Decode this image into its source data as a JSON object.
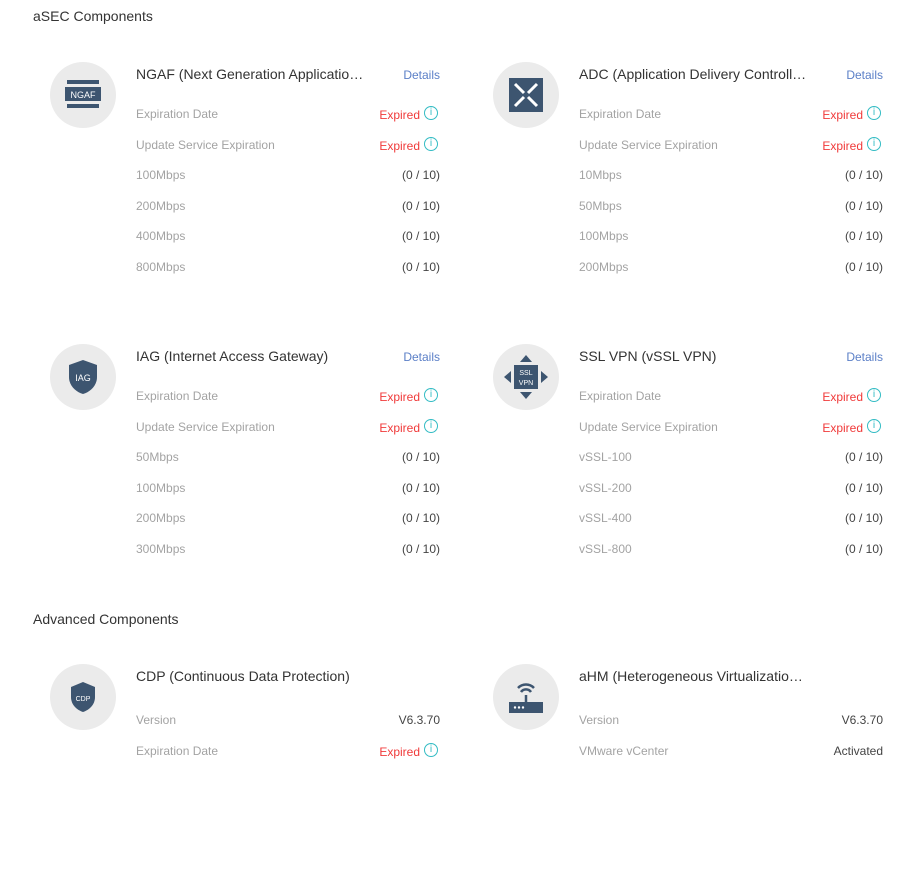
{
  "sections": [
    {
      "title": "aSEC Components"
    },
    {
      "title": "Advanced Components"
    }
  ],
  "colors": {
    "expired": "#f03a3a",
    "link": "#5b7fc7",
    "info": "#33bcc4",
    "icon": "#3d5570"
  },
  "cards": [
    {
      "icon": "ngaf-icon",
      "icon_text": "NGAF",
      "title": "NGAF (Next Generation Applicatio…",
      "details": "Details",
      "rows": [
        {
          "label": "Expiration Date",
          "value": "Expired",
          "status": "expired"
        },
        {
          "label": "Update Service Expiration",
          "value": "Expired",
          "status": "expired"
        },
        {
          "label": "100Mbps",
          "value": "(0 / 10)"
        },
        {
          "label": "200Mbps",
          "value": "(0 / 10)"
        },
        {
          "label": "400Mbps",
          "value": "(0 / 10)"
        },
        {
          "label": "800Mbps",
          "value": "(0 / 10)"
        }
      ]
    },
    {
      "icon": "adc-icon",
      "title": "ADC (Application Delivery Controll…",
      "details": "Details",
      "rows": [
        {
          "label": "Expiration Date",
          "value": "Expired",
          "status": "expired"
        },
        {
          "label": "Update Service Expiration",
          "value": "Expired",
          "status": "expired"
        },
        {
          "label": "10Mbps",
          "value": "(0 / 10)"
        },
        {
          "label": "50Mbps",
          "value": "(0 / 10)"
        },
        {
          "label": "100Mbps",
          "value": "(0 / 10)"
        },
        {
          "label": "200Mbps",
          "value": "(0 / 10)"
        }
      ]
    },
    {
      "icon": "iag-shield-icon",
      "icon_text": "IAG",
      "title": "IAG (Internet Access Gateway)",
      "details": "Details",
      "rows": [
        {
          "label": "Expiration Date",
          "value": "Expired",
          "status": "expired"
        },
        {
          "label": "Update Service Expiration",
          "value": "Expired",
          "status": "expired"
        },
        {
          "label": "50Mbps",
          "value": "(0 / 10)"
        },
        {
          "label": "100Mbps",
          "value": "(0 / 10)"
        },
        {
          "label": "200Mbps",
          "value": "(0 / 10)"
        },
        {
          "label": "300Mbps",
          "value": "(0 / 10)"
        }
      ]
    },
    {
      "icon": "ssl-vpn-icon",
      "icon_text": "SSL VPN",
      "title": "SSL VPN (vSSL VPN)",
      "details": "Details",
      "rows": [
        {
          "label": "Expiration Date",
          "value": "Expired",
          "status": "expired"
        },
        {
          "label": "Update Service Expiration",
          "value": "Expired",
          "status": "expired"
        },
        {
          "label": "vSSL-100",
          "value": "(0 / 10)"
        },
        {
          "label": "vSSL-200",
          "value": "(0 / 10)"
        },
        {
          "label": "vSSL-400",
          "value": "(0 / 10)"
        },
        {
          "label": "vSSL-800",
          "value": "(0 / 10)"
        }
      ]
    },
    {
      "icon": "cdp-shield-icon",
      "icon_text": "CDP",
      "title": "CDP (Continuous Data Protection)",
      "rows": [
        {
          "label": "Version",
          "value": "V6.3.70"
        },
        {
          "label": "Expiration Date",
          "value": "Expired",
          "status": "expired"
        }
      ]
    },
    {
      "icon": "router-wifi-icon",
      "title": "aHM (Heterogeneous Virtualizatio…",
      "rows": [
        {
          "label": "Version",
          "value": "V6.3.70"
        },
        {
          "label": "VMware vCenter",
          "value": "Activated"
        }
      ]
    }
  ]
}
